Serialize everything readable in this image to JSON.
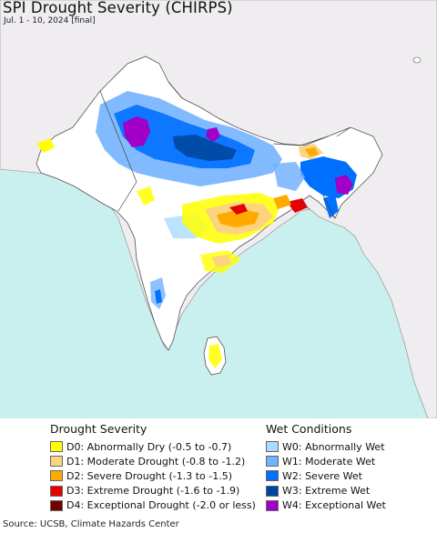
{
  "title": "SPI Drought Severity (CHIRPS)",
  "subtitle": "Jul. 1 - 10, 2024 [final]",
  "colors": {
    "ocean": "#c9f0ee",
    "land_outside": "#efedf0",
    "land_inside": "#ffffff",
    "border": "#555555"
  },
  "legend": {
    "drought": {
      "heading": "Drought Severity",
      "items": [
        {
          "code": "D0",
          "label": "D0: Abnormally Dry (-0.5 to -0.7)",
          "color": "#ffff00"
        },
        {
          "code": "D1",
          "label": "D1: Moderate Drought (-0.8 to -1.2)",
          "color": "#fcd37f"
        },
        {
          "code": "D2",
          "label": "D2: Severe Drought (-1.3 to -1.5)",
          "color": "#ffaa00"
        },
        {
          "code": "D3",
          "label": "D3: Extreme Drought (-1.6 to -1.9)",
          "color": "#e60000"
        },
        {
          "code": "D4",
          "label": "D4: Exceptional Drought (-2.0 or less)",
          "color": "#730000"
        }
      ]
    },
    "wet": {
      "heading": "Wet Conditions",
      "items": [
        {
          "code": "W0",
          "label": "W0: Abnormally Wet",
          "color": "#aadcff"
        },
        {
          "code": "W1",
          "label": "W1: Moderate Wet",
          "color": "#73b2ff"
        },
        {
          "code": "W2",
          "label": "W2: Severe Wet",
          "color": "#0070ff"
        },
        {
          "code": "W3",
          "label": "W3: Extreme Wet",
          "color": "#0046a0"
        },
        {
          "code": "W4",
          "label": "W4: Exceptional Wet",
          "color": "#a000c8"
        }
      ]
    }
  },
  "source": "Source: UCSB, Climate Hazards Center"
}
